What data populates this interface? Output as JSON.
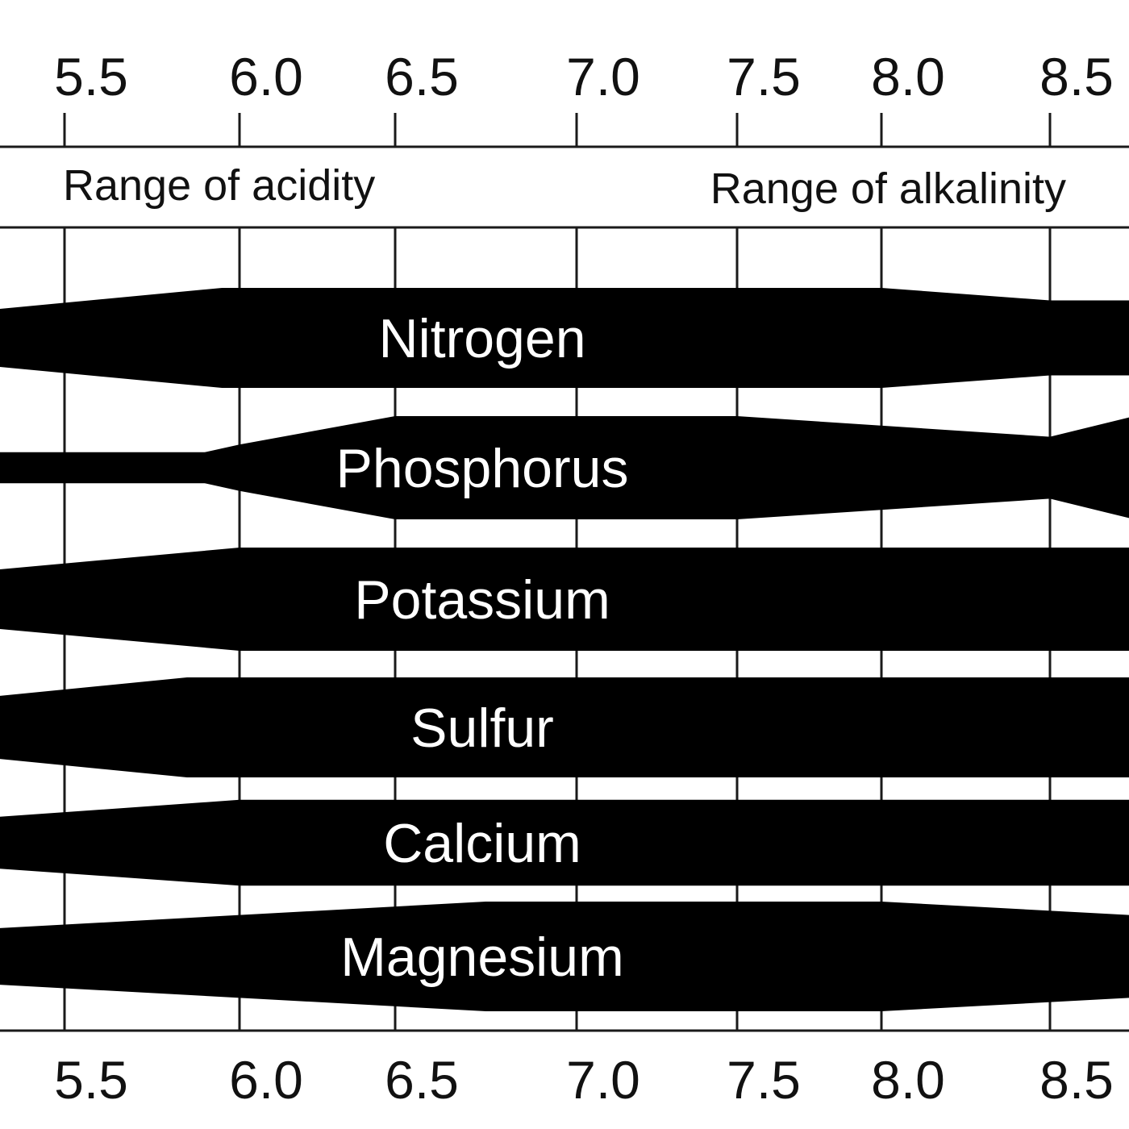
{
  "chart_data": {
    "type": "area",
    "x_unit": "pH",
    "xlim": [
      5.0,
      8.75
    ],
    "ticks": [
      "5.5",
      "6.0",
      "6.5",
      "7.0",
      "7.5",
      "8.0",
      "8.5"
    ],
    "tick_values": [
      5.5,
      6.0,
      6.5,
      7.0,
      7.5,
      8.0,
      8.5
    ],
    "range_labels": {
      "acidity": "Range of acidity",
      "alkalinity": "Range of alkalinity"
    },
    "band_color": "#000000",
    "label_color": "#ffffff",
    "series": [
      {
        "name": "Nitrogen",
        "x": [
          5.0,
          5.95,
          6.0,
          8.0,
          8.5,
          8.75
        ],
        "availability": [
          0.55,
          1.0,
          1.0,
          1.0,
          0.75,
          0.75
        ]
      },
      {
        "name": "Phosphorus",
        "x": [
          5.0,
          5.9,
          6.0,
          6.5,
          7.5,
          8.5,
          8.75
        ],
        "availability": [
          0.3,
          0.3,
          0.45,
          1.0,
          1.0,
          0.6,
          1.0
        ]
      },
      {
        "name": "Potassium",
        "x": [
          5.0,
          6.0,
          8.75
        ],
        "availability": [
          0.55,
          1.0,
          1.0
        ]
      },
      {
        "name": "Sulfur",
        "x": [
          5.0,
          5.85,
          8.75
        ],
        "availability": [
          0.6,
          1.0,
          1.0
        ]
      },
      {
        "name": "Calcium",
        "x": [
          5.0,
          6.0,
          8.75
        ],
        "availability": [
          0.55,
          0.95,
          0.95
        ]
      },
      {
        "name": "Magnesium",
        "x": [
          5.0,
          6.75,
          8.0,
          8.75
        ],
        "availability": [
          0.5,
          1.0,
          1.0,
          0.75
        ]
      }
    ]
  }
}
